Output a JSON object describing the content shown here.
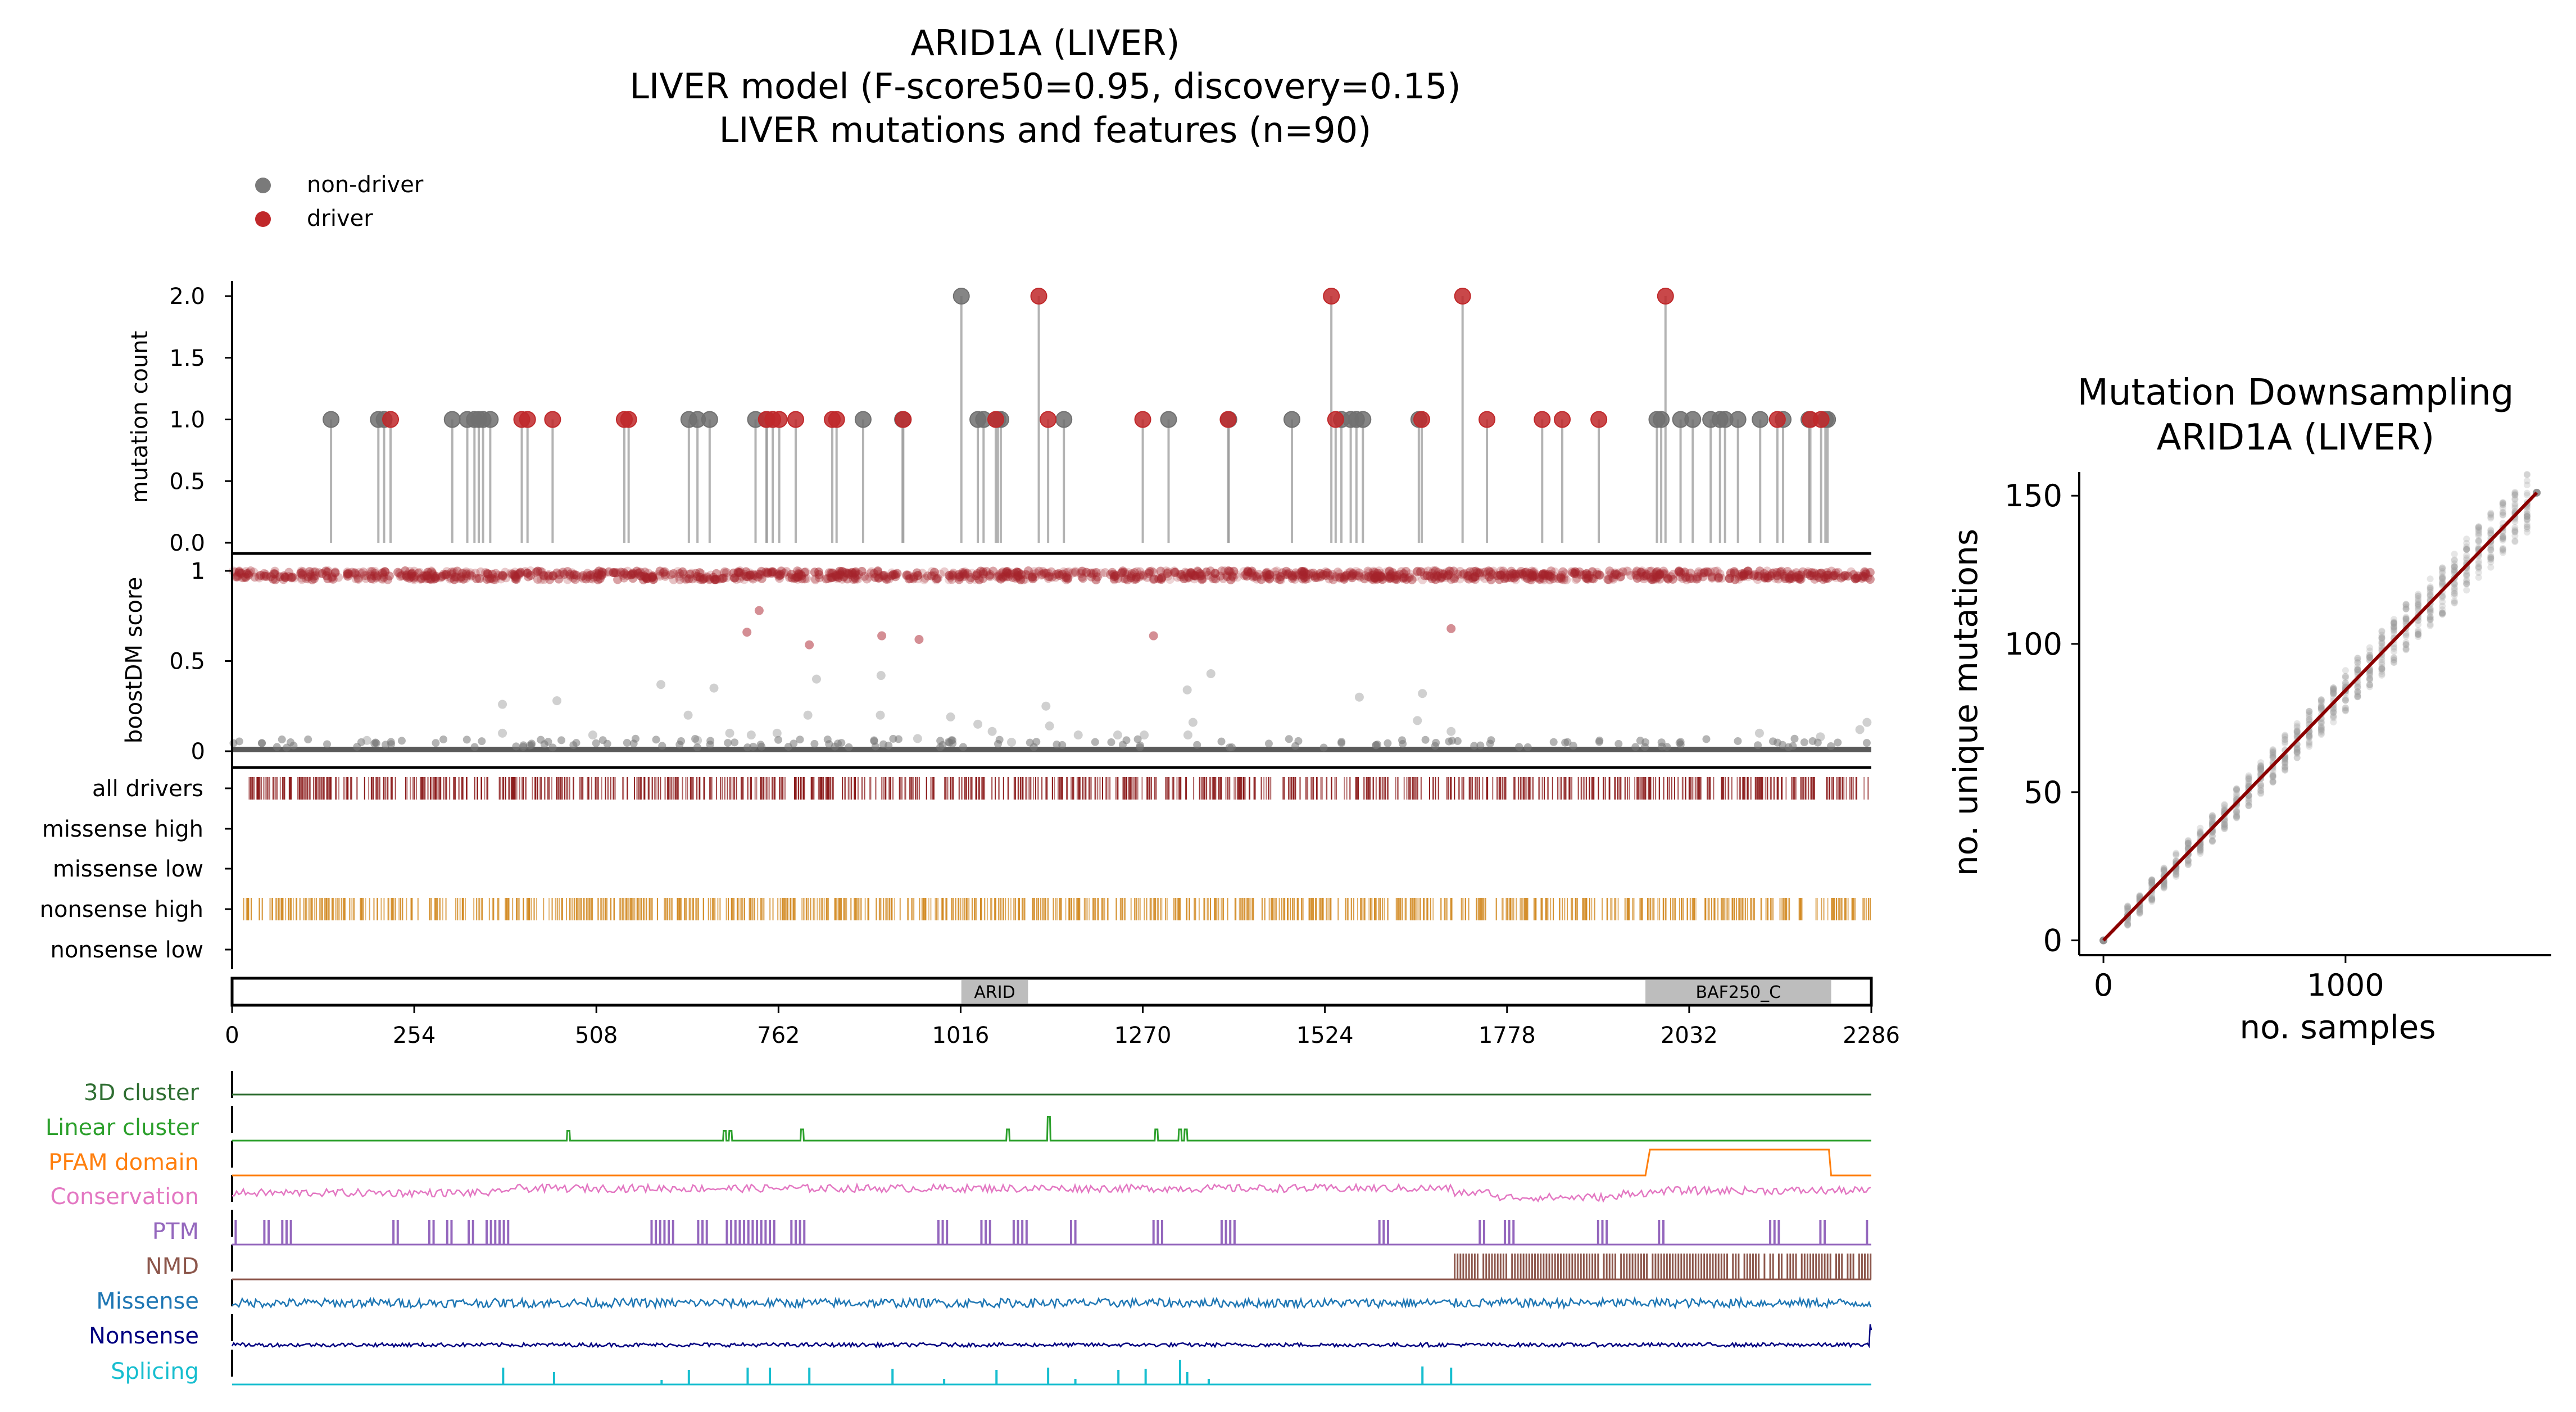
{
  "figure": {
    "title_lines": [
      "ARID1A (LIVER)",
      "LIVER model (F-score50=0.95, discovery=0.15)",
      "LIVER mutations and features (n=90)"
    ]
  },
  "chart_data": [
    {
      "type": "scatter",
      "name_key": "mutation-count-lollipop",
      "ylabel": "mutation count",
      "ylim": [
        0,
        2.0
      ],
      "yticks": [
        "0.0",
        "0.5",
        "1.0",
        "1.5",
        "2.0"
      ],
      "xlim": [
        0,
        2286
      ],
      "legend": {
        "placement": "top-left",
        "entries": [
          {
            "label": "non-driver",
            "color": "#7a7a7a"
          },
          {
            "label": "driver",
            "color": "#c0282a"
          }
        ]
      },
      "non_driver_positions": [
        138,
        204,
        212,
        307,
        328,
        338,
        344,
        350,
        360,
        637,
        649,
        666,
        730,
        746,
        880,
        935,
        1017,
        1040,
        1048,
        1068,
        1072,
        1160,
        1306,
        1390,
        1478,
        1547,
        1560,
        1568,
        1577,
        1655,
        1987,
        1993,
        2020,
        2037,
        2062,
        2075,
        2082,
        2100,
        2131,
        2163,
        2199,
        2222,
        2225
      ],
      "non_driver_counts": [
        1,
        1,
        1,
        1,
        1,
        1,
        1,
        1,
        1,
        1,
        1,
        1,
        1,
        1,
        1,
        1,
        2,
        1,
        1,
        1,
        1,
        1,
        1,
        1,
        1,
        1,
        1,
        1,
        1,
        1,
        1,
        1,
        1,
        1,
        1,
        1,
        1,
        1,
        1,
        1,
        1,
        1,
        1
      ],
      "driver_positions": [
        221,
        404,
        412,
        447,
        547,
        553,
        745,
        754,
        763,
        786,
        837,
        843,
        936,
        1065,
        1125,
        1138,
        1270,
        1389,
        1533,
        1539,
        1659,
        1716,
        1750,
        1827,
        1855,
        1906,
        1999,
        2155,
        2201,
        2216
      ],
      "driver_counts": [
        1,
        1,
        1,
        1,
        1,
        1,
        1,
        1,
        1,
        1,
        1,
        1,
        1,
        1,
        2,
        1,
        1,
        1,
        2,
        1,
        1,
        2,
        1,
        1,
        1,
        1,
        2,
        1,
        1,
        1
      ]
    },
    {
      "type": "scatter",
      "name_key": "boostdm-score",
      "ylabel": "boostDM score",
      "ylim": [
        0,
        1
      ],
      "yticks": [
        "0",
        "0.5",
        "1"
      ],
      "xlim": [
        0,
        2286
      ],
      "mid_points_driver": [
        {
          "x": 718,
          "y": 0.66
        },
        {
          "x": 735,
          "y": 0.78
        },
        {
          "x": 805,
          "y": 0.59
        },
        {
          "x": 906,
          "y": 0.64
        },
        {
          "x": 958,
          "y": 0.62
        },
        {
          "x": 1285,
          "y": 0.64
        },
        {
          "x": 1700,
          "y": 0.68
        }
      ],
      "mid_points_nondriver": [
        {
          "x": 188,
          "y": 0.06
        },
        {
          "x": 377,
          "y": 0.26
        },
        {
          "x": 377,
          "y": 0.1
        },
        {
          "x": 453,
          "y": 0.28
        },
        {
          "x": 503,
          "y": 0.09
        },
        {
          "x": 598,
          "y": 0.37
        },
        {
          "x": 636,
          "y": 0.2
        },
        {
          "x": 649,
          "y": 0.06
        },
        {
          "x": 672,
          "y": 0.35
        },
        {
          "x": 694,
          "y": 0.1
        },
        {
          "x": 724,
          "y": 0.09
        },
        {
          "x": 760,
          "y": 0.1
        },
        {
          "x": 803,
          "y": 0.2
        },
        {
          "x": 815,
          "y": 0.4
        },
        {
          "x": 905,
          "y": 0.42
        },
        {
          "x": 904,
          "y": 0.2
        },
        {
          "x": 956,
          "y": 0.07
        },
        {
          "x": 1002,
          "y": 0.19
        },
        {
          "x": 1040,
          "y": 0.15
        },
        {
          "x": 1060,
          "y": 0.11
        },
        {
          "x": 1087,
          "y": 0.05
        },
        {
          "x": 1135,
          "y": 0.25
        },
        {
          "x": 1140,
          "y": 0.14
        },
        {
          "x": 1180,
          "y": 0.09
        },
        {
          "x": 1235,
          "y": 0.09
        },
        {
          "x": 1272,
          "y": 0.09
        },
        {
          "x": 1332,
          "y": 0.34
        },
        {
          "x": 1340,
          "y": 0.16
        },
        {
          "x": 1333,
          "y": 0.09
        },
        {
          "x": 1365,
          "y": 0.43
        },
        {
          "x": 1572,
          "y": 0.3
        },
        {
          "x": 1653,
          "y": 0.17
        },
        {
          "x": 1660,
          "y": 0.32
        },
        {
          "x": 1700,
          "y": 0.11
        },
        {
          "x": 2130,
          "y": 0.1
        },
        {
          "x": 2215,
          "y": 0.08
        },
        {
          "x": 2270,
          "y": 0.12
        },
        {
          "x": 2280,
          "y": 0.16
        }
      ]
    },
    {
      "type": "scatter",
      "name_key": "mutation-type-rug",
      "row_labels": [
        "all drivers",
        "missense high",
        "missense low",
        "nonsense high",
        "nonsense low"
      ],
      "row_colors": [
        "#8b1a1a",
        "#000000",
        "#000000",
        "#d28a23",
        "#000000"
      ],
      "xlim": [
        0,
        2286
      ]
    },
    {
      "type": "bar",
      "name_key": "protein-domains",
      "xlim": [
        0,
        2286
      ],
      "xticks": [
        "0",
        "254",
        "508",
        "762",
        "1016",
        "1270",
        "1524",
        "1778",
        "2032",
        "2286"
      ],
      "domains": [
        {
          "label": "ARID",
          "start": 1017,
          "end": 1110
        },
        {
          "label": "BAF250_C",
          "start": 1971,
          "end": 2230
        }
      ]
    },
    {
      "type": "line",
      "name_key": "feature-tracks",
      "xlim": [
        0,
        2286
      ],
      "tracks": [
        {
          "label": "3D cluster",
          "color": "#2f6e32"
        },
        {
          "label": "Linear cluster",
          "color": "#2ca02c"
        },
        {
          "label": "PFAM domain",
          "color": "#ff7f0e"
        },
        {
          "label": "Conservation",
          "color": "#e377c2"
        },
        {
          "label": "PTM",
          "color": "#9467bd"
        },
        {
          "label": "NMD",
          "color": "#8c564b"
        },
        {
          "label": "Missense",
          "color": "#1f77b4"
        },
        {
          "label": "Nonsense",
          "color": "#000080"
        },
        {
          "label": "Splicing",
          "color": "#17becf"
        }
      ],
      "linear_cluster_peaks": [
        {
          "x": 469,
          "h": 0.35
        },
        {
          "x": 687,
          "h": 0.35
        },
        {
          "x": 695,
          "h": 0.35
        },
        {
          "x": 795,
          "h": 0.4
        },
        {
          "x": 1082,
          "h": 0.4
        },
        {
          "x": 1139,
          "h": 0.85
        },
        {
          "x": 1289,
          "h": 0.4
        },
        {
          "x": 1322,
          "h": 0.4
        },
        {
          "x": 1330,
          "h": 0.4
        }
      ],
      "splicing_peaks": [
        378,
        449,
        599,
        637,
        719,
        750,
        805,
        921,
        993,
        1066,
        1138,
        1176,
        1236,
        1274,
        1322,
        1332,
        1362,
        1660,
        1700
      ]
    },
    {
      "type": "scatter",
      "name_key": "mutation-downsampling",
      "title_lines": [
        "Mutation Downsampling",
        "ARID1A (LIVER)"
      ],
      "xlabel": "no. samples",
      "ylabel": "no. unique mutations",
      "xlim": [
        -100,
        1850
      ],
      "ylim": [
        -5,
        158
      ],
      "xticks": [
        "0",
        "1000"
      ],
      "yticks": [
        "0",
        "50",
        "100",
        "150"
      ],
      "fit_line": {
        "x": [
          0,
          1790
        ],
        "y": [
          0,
          151
        ],
        "color": "#8b0000"
      },
      "max_samples": 1790,
      "max_mutations": 151
    }
  ]
}
